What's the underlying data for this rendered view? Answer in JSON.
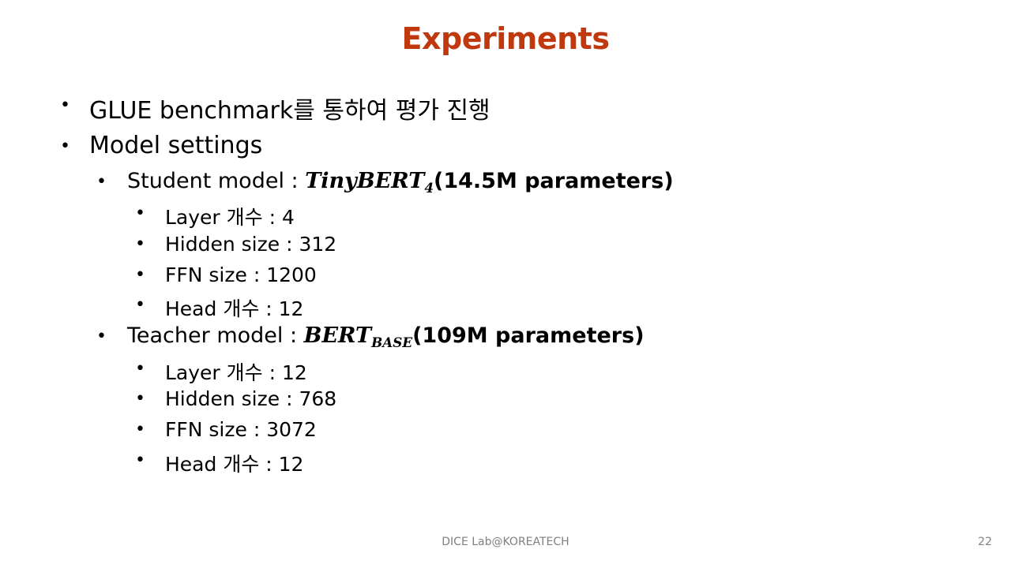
{
  "slide": {
    "title": "Experiments",
    "bullets": [
      {
        "text": "GLUE benchmark를 통하여 평가 진행"
      },
      {
        "text": "Model settings"
      }
    ],
    "student": {
      "prefix": "Student model : ",
      "model_name": "TinyBERT",
      "model_sub": "4",
      "params": "(14.5M parameters)",
      "items": [
        "Layer 개수 : 4",
        "Hidden size : 312",
        "FFN size : 1200",
        "Head 개수 : 12"
      ]
    },
    "teacher": {
      "prefix": "Teacher model : ",
      "model_name": "BERT",
      "model_sub": "BASE",
      "params": "(109M parameters)",
      "items": [
        "Layer 개수 : 12",
        "Hidden size : 768",
        "FFN size : 3072",
        "Head 개수 : 12"
      ]
    },
    "footer": "DICE  Lab@KOREATECH",
    "page_number": "22"
  },
  "colors": {
    "title": "#C0380E",
    "footer": "#808080"
  }
}
